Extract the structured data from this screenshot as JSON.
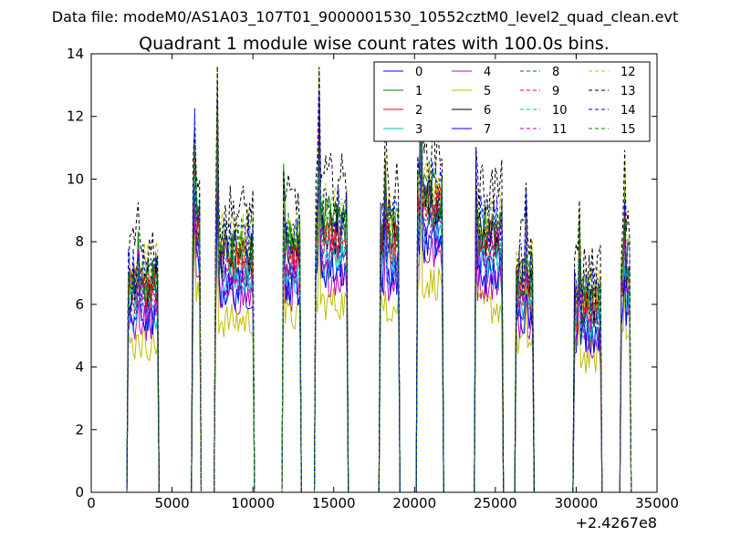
{
  "header": {
    "data_file": "Data file: modeM0/AS1A03_107T01_9000001530_10552cztM0_level2_quad_clean.evt"
  },
  "chart_data": {
    "type": "line",
    "title": "Quadrant 1 module wise count rates with 100.0s bins.",
    "xlabel": "",
    "ylabel": "",
    "x_offset_label": "+2.4267e8",
    "xlim": [
      0,
      35000
    ],
    "ylim": [
      0,
      14
    ],
    "x_ticks": [
      0,
      5000,
      10000,
      15000,
      20000,
      25000,
      30000,
      35000
    ],
    "y_ticks": [
      0,
      2,
      4,
      6,
      8,
      10,
      12,
      14
    ],
    "x_tick_labels": [
      "0",
      "5000",
      "10000",
      "15000",
      "20000",
      "25000",
      "30000",
      "35000"
    ],
    "y_tick_labels": [
      "0",
      "2",
      "4",
      "6",
      "8",
      "10",
      "12",
      "14"
    ],
    "grid": false,
    "legend_location": "upper-right",
    "bin_seconds": 100,
    "segments": [
      {
        "start": 2300,
        "end": 4100,
        "level": 6.6,
        "spike_idx": 6,
        "spike": 1.15
      },
      {
        "start": 6300,
        "end": 6700,
        "level": 8.6,
        "spike_idx": 1,
        "spike": 1.25
      },
      {
        "start": 7700,
        "end": 10000,
        "level": 7.6,
        "spike_idx": 1,
        "spike": 1.55
      },
      {
        "start": 11900,
        "end": 12900,
        "level": 7.8,
        "spike_idx": 0,
        "spike": 1.2
      },
      {
        "start": 13900,
        "end": 15800,
        "level": 8.4,
        "spike_idx": 2,
        "spike": 1.45
      },
      {
        "start": 17900,
        "end": 19000,
        "level": 8.2,
        "spike_idx": 3,
        "spike": 1.2
      },
      {
        "start": 20200,
        "end": 21700,
        "level": 9.3,
        "spike_idx": 2,
        "spike": 1.4
      },
      {
        "start": 23800,
        "end": 25400,
        "level": 8.2,
        "spike_idx": 0,
        "spike": 1.2
      },
      {
        "start": 26300,
        "end": 27300,
        "level": 6.7,
        "spike_idx": 6,
        "spike": 1.25
      },
      {
        "start": 29900,
        "end": 31500,
        "level": 6.0,
        "spike_idx": 3,
        "spike": 1.3
      },
      {
        "start": 32800,
        "end": 33300,
        "level": 7.0,
        "spike_idx": 2,
        "spike": 1.25
      }
    ],
    "series": [
      {
        "name": "0",
        "color": "#0000ff",
        "style": "solid",
        "scale": 0.9
      },
      {
        "name": "1",
        "color": "#008000",
        "style": "solid",
        "scale": 1.03
      },
      {
        "name": "2",
        "color": "#ff0000",
        "style": "solid",
        "scale": 0.97
      },
      {
        "name": "3",
        "color": "#00bfbf",
        "style": "solid",
        "scale": 0.87
      },
      {
        "name": "4",
        "color": "#bf00bf",
        "style": "solid",
        "scale": 0.82
      },
      {
        "name": "5",
        "color": "#bfbf00",
        "style": "solid",
        "scale": 0.72
      },
      {
        "name": "6",
        "color": "#000000",
        "style": "solid",
        "scale": 1.0
      },
      {
        "name": "7",
        "color": "#0000ff",
        "style": "solid",
        "scale": 0.85
      },
      {
        "name": "8",
        "color": "#008000",
        "style": "dashed",
        "scale": 1.05
      },
      {
        "name": "9",
        "color": "#ff0000",
        "style": "dashed",
        "scale": 0.98
      },
      {
        "name": "10",
        "color": "#00bfbf",
        "style": "dashed",
        "scale": 0.92
      },
      {
        "name": "11",
        "color": "#bf00bf",
        "style": "dashed",
        "scale": 0.93
      },
      {
        "name": "12",
        "color": "#bfbf00",
        "style": "dashed",
        "scale": 1.08
      },
      {
        "name": "13",
        "color": "#000000",
        "style": "dashed",
        "scale": 1.18
      },
      {
        "name": "14",
        "color": "#0000ff",
        "style": "dashed",
        "scale": 1.06
      },
      {
        "name": "15",
        "color": "#008000",
        "style": "dashed",
        "scale": 1.0
      }
    ]
  }
}
